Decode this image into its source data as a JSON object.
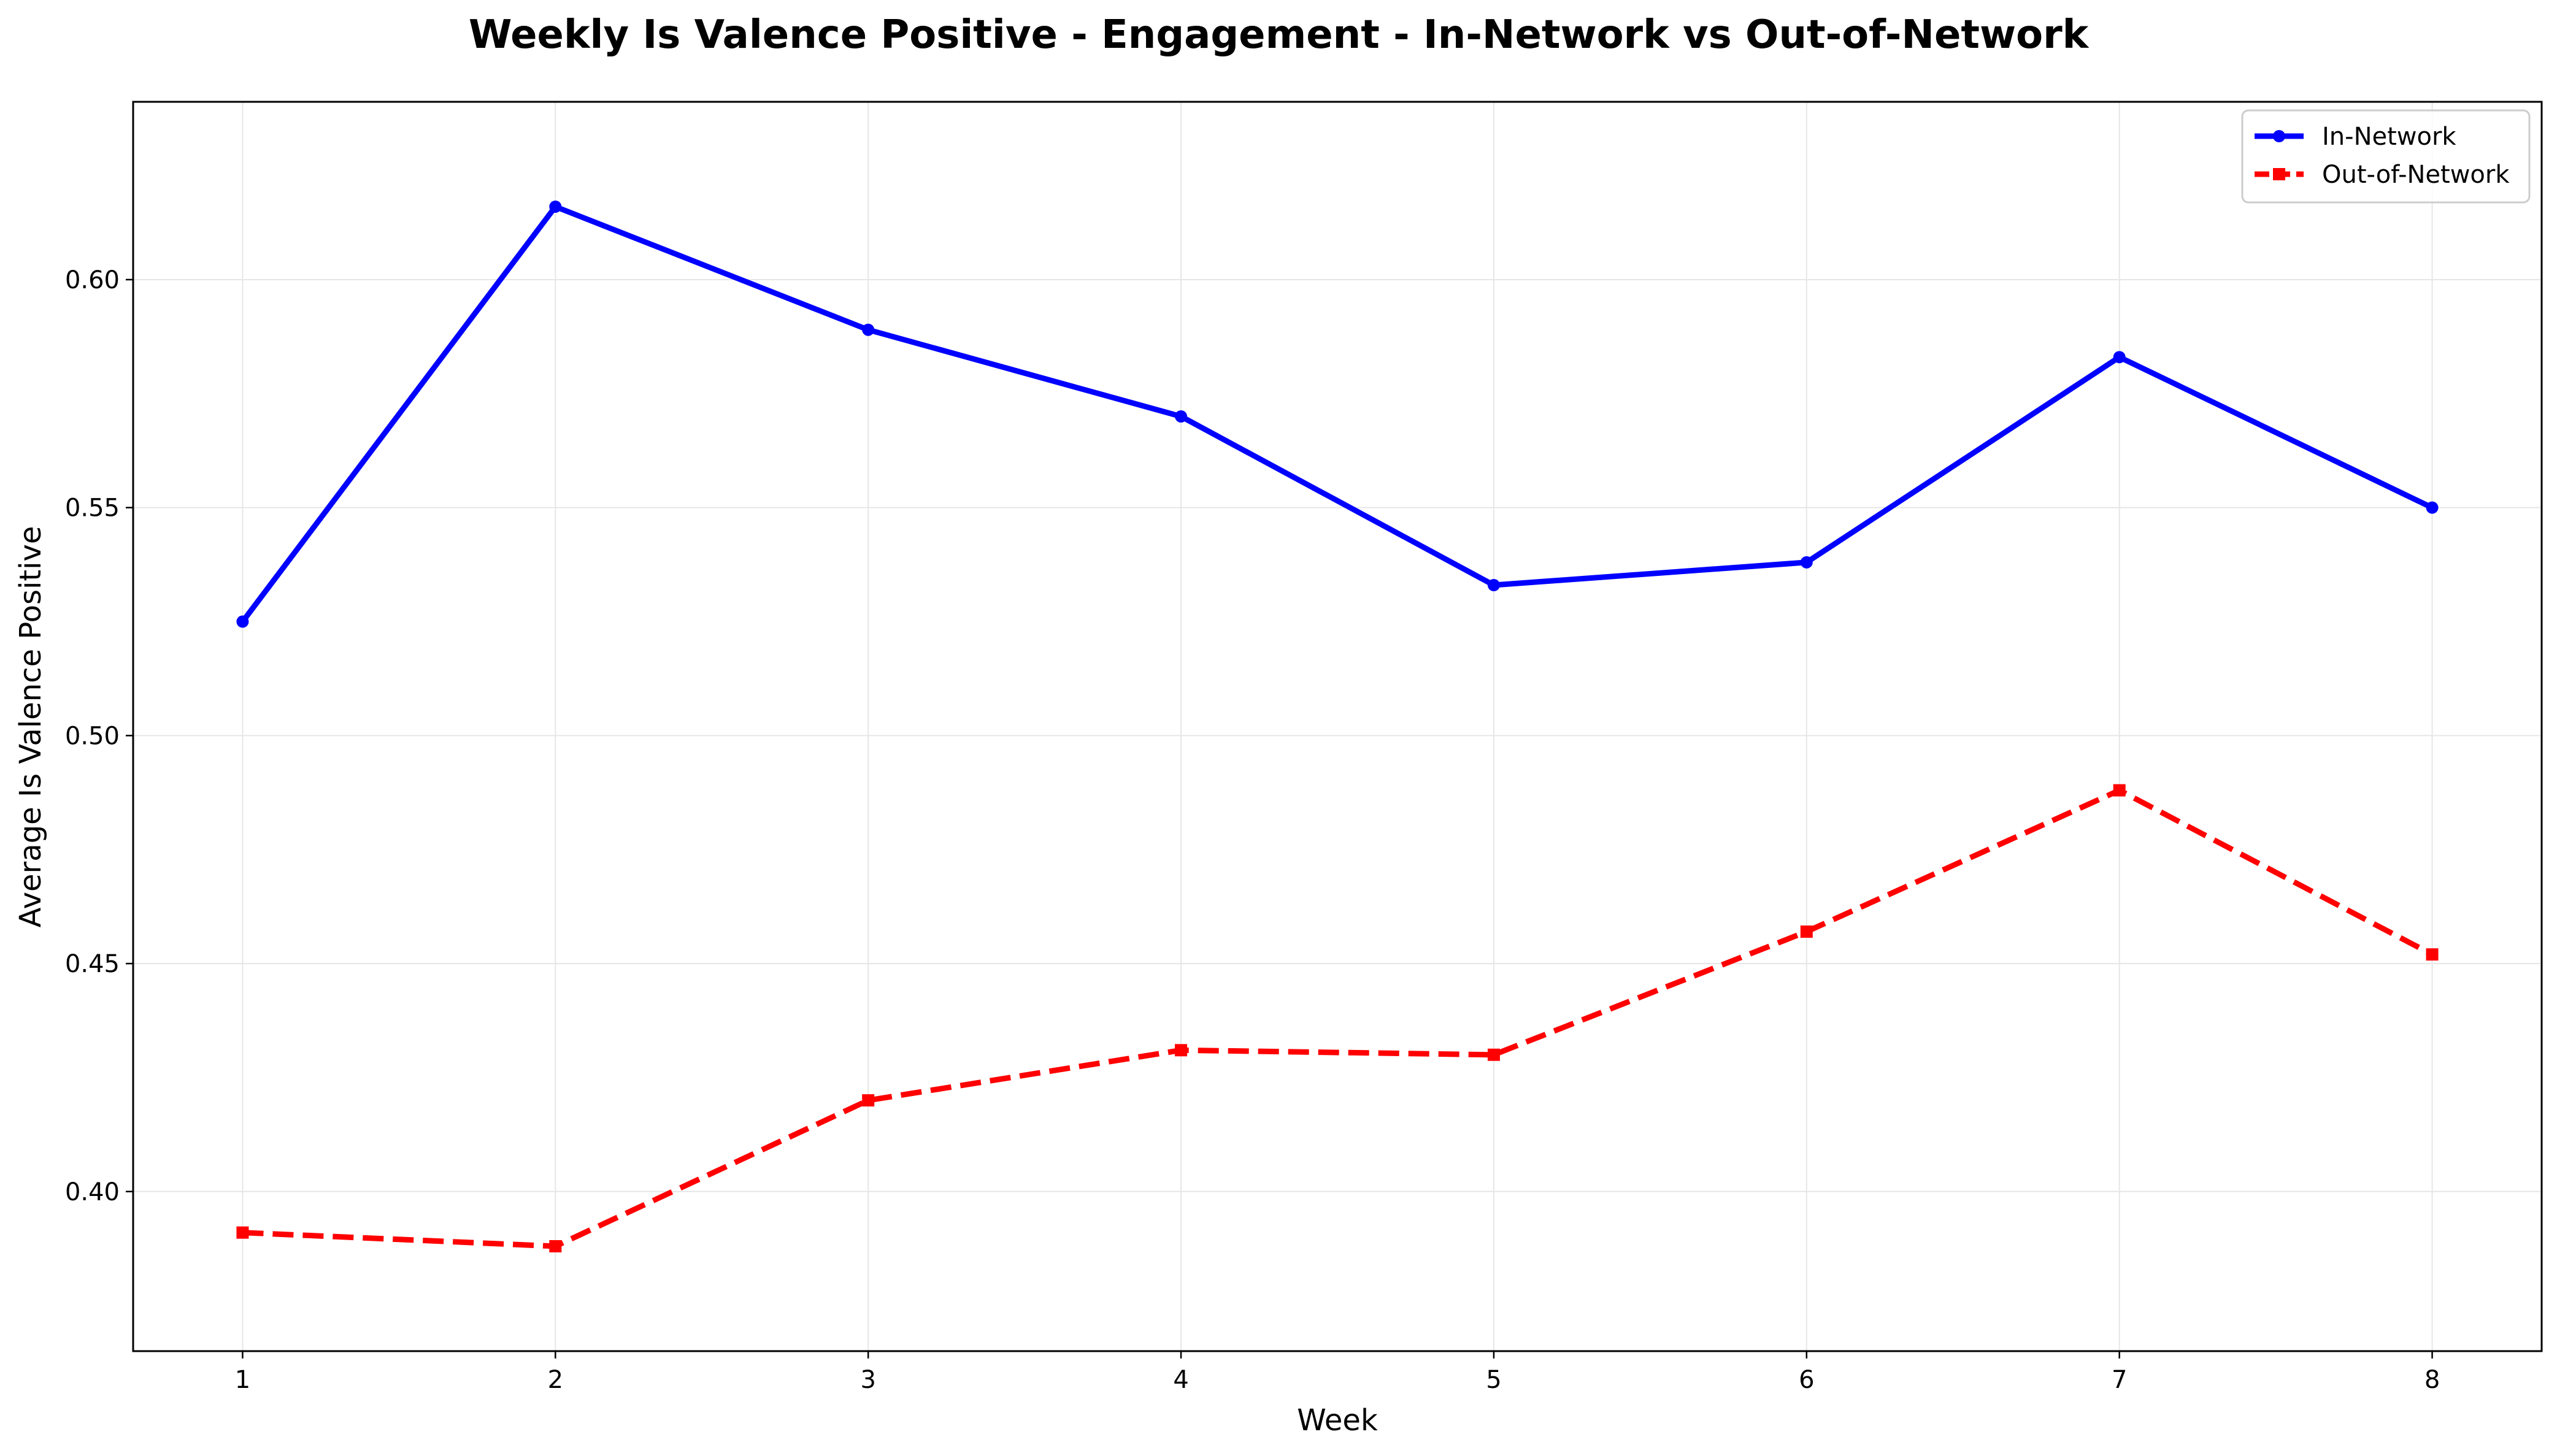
{
  "chart_data": {
    "type": "line",
    "title": "Weekly Is Valence Positive - Engagement - In-Network vs Out-of-Network",
    "xlabel": "Week",
    "ylabel": "Average Is Valence Positive",
    "x": [
      1,
      2,
      3,
      4,
      5,
      6,
      7,
      8
    ],
    "xlim": [
      0.65,
      8.35
    ],
    "ylim": [
      0.365,
      0.639
    ],
    "xticks": [
      "1",
      "2",
      "3",
      "4",
      "5",
      "6",
      "7",
      "8"
    ],
    "yticks": [
      "0.40",
      "0.45",
      "0.50",
      "0.55",
      "0.60"
    ],
    "grid": true,
    "legend_position": "top-right",
    "series": [
      {
        "name": "In-Network",
        "color": "#0000ff",
        "line_style": "solid",
        "marker": "circle",
        "values": [
          0.525,
          0.616,
          0.589,
          0.57,
          0.533,
          0.538,
          0.583,
          0.55
        ]
      },
      {
        "name": "Out-of-Network",
        "color": "#ff0000",
        "line_style": "dashed",
        "marker": "square",
        "values": [
          0.391,
          0.388,
          0.42,
          0.431,
          0.43,
          0.457,
          0.488,
          0.452
        ]
      }
    ]
  }
}
